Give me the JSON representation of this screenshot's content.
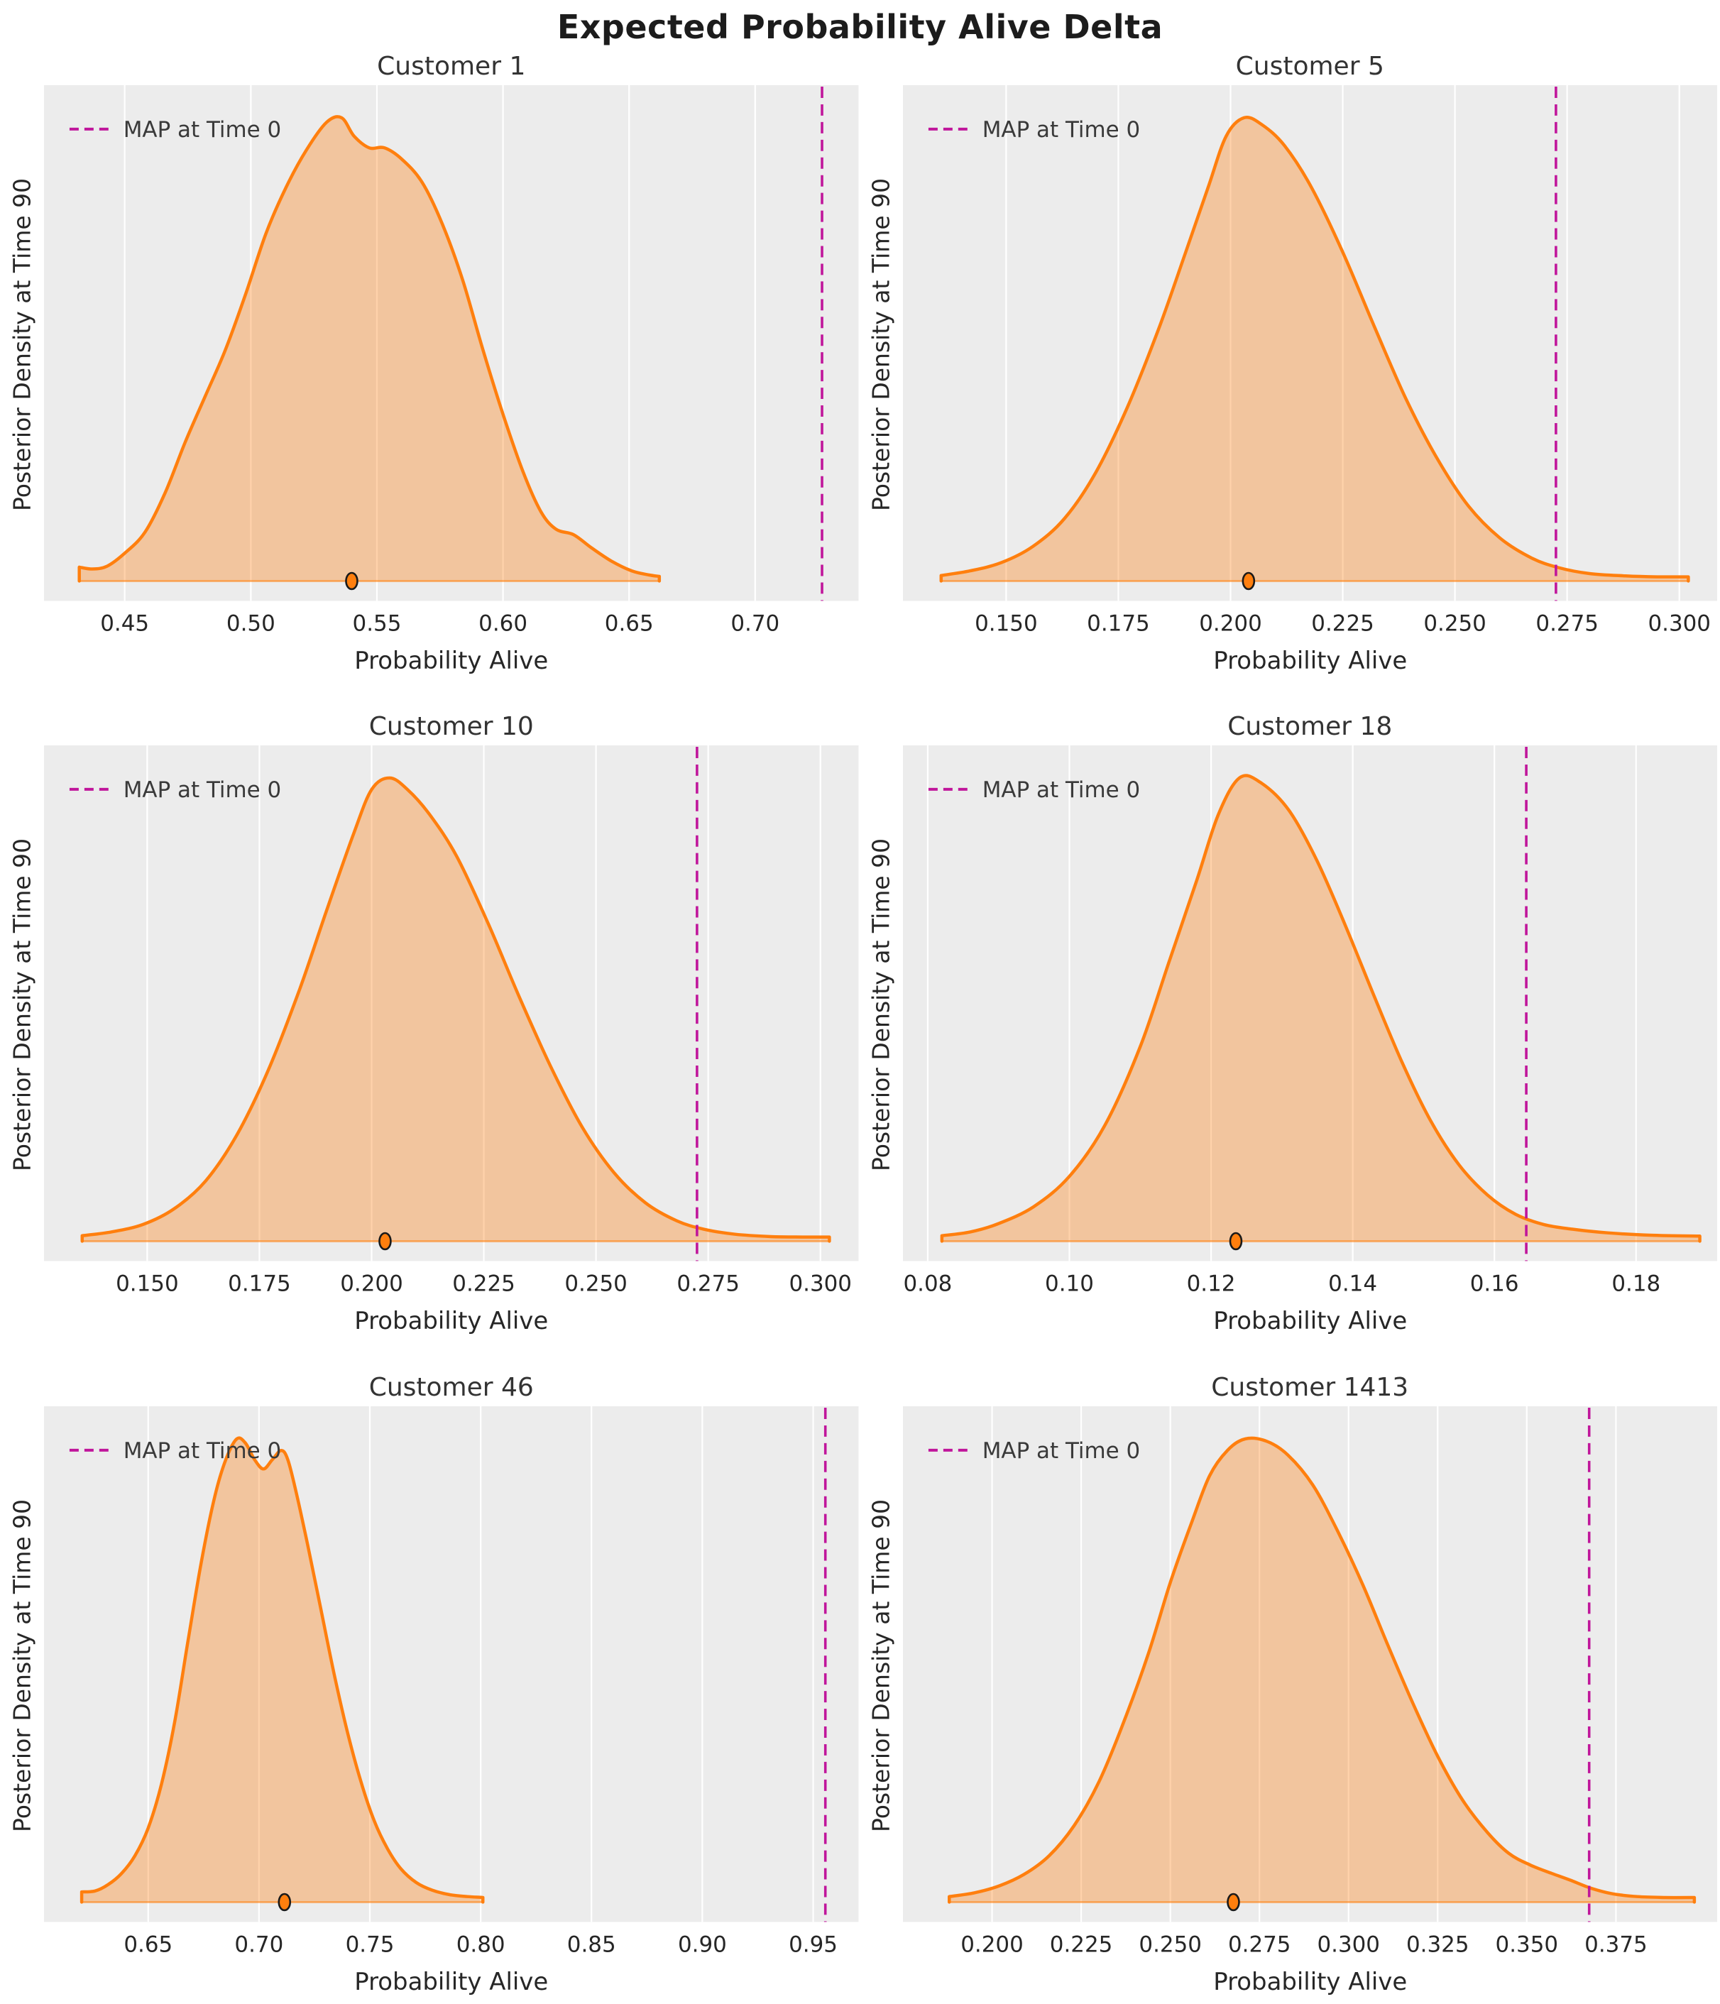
{
  "figure": {
    "suptitle": "Expected Probability Alive Delta"
  },
  "colors": {
    "axes_bg": "#ececec",
    "grid": "#ffffff",
    "density_line": "#ff7f0e",
    "density_fill": "rgba(255,127,14,0.35)",
    "baseline": "rgba(255,127,14,0.55)",
    "map_line": "#c0169b",
    "marker_fill": "#ff7f0e",
    "marker_edge": "#1a1a1a",
    "tick_text": "#262626",
    "label_text": "#262626",
    "legend_text": "#3a3a3a"
  },
  "chart_data": [
    {
      "type": "area",
      "title": "Customer 1",
      "xlabel": "Probability Alive",
      "ylabel": "Posterior Density at Time 90",
      "legend_label": "MAP at Time 0",
      "xlim": [
        0.418,
        0.741
      ],
      "xticks": [
        0.45,
        0.5,
        0.55,
        0.6,
        0.65,
        0.7
      ],
      "tick_decimals": 2,
      "map_at_time0_x": 0.7265,
      "expected_dot_x": 0.54,
      "grid": "vertical-only",
      "legend_position": "upper-left",
      "density_curve": {
        "x": [
          0.432,
          0.437,
          0.443,
          0.45,
          0.458,
          0.466,
          0.474,
          0.482,
          0.49,
          0.498,
          0.506,
          0.514,
          0.522,
          0.53,
          0.536,
          0.541,
          0.547,
          0.553,
          0.56,
          0.568,
          0.576,
          0.584,
          0.592,
          0.6,
          0.608,
          0.615,
          0.621,
          0.628,
          0.635,
          0.643,
          0.651,
          0.658,
          0.662
        ],
        "y_rel": [
          0.03,
          0.026,
          0.032,
          0.06,
          0.105,
          0.19,
          0.3,
          0.4,
          0.5,
          0.62,
          0.75,
          0.85,
          0.93,
          0.99,
          1.0,
          0.96,
          0.935,
          0.935,
          0.91,
          0.86,
          0.77,
          0.65,
          0.5,
          0.36,
          0.235,
          0.15,
          0.112,
          0.1,
          0.072,
          0.043,
          0.022,
          0.013,
          0.01
        ]
      }
    },
    {
      "type": "area",
      "title": "Customer 5",
      "xlabel": "Probability Alive",
      "ylabel": "Posterior Density at Time 90",
      "legend_label": "MAP at Time 0",
      "xlim": [
        0.127,
        0.3085
      ],
      "xticks": [
        0.15,
        0.175,
        0.2,
        0.225,
        0.25,
        0.275,
        0.3
      ],
      "tick_decimals": 3,
      "map_at_time0_x": 0.2725,
      "expected_dot_x": 0.204,
      "grid": "vertical-only",
      "legend_position": "upper-left",
      "density_curve": {
        "x": [
          0.1355,
          0.142,
          0.149,
          0.156,
          0.163,
          0.17,
          0.177,
          0.184,
          0.19,
          0.195,
          0.199,
          0.203,
          0.207,
          0.212,
          0.218,
          0.225,
          0.232,
          0.239,
          0.246,
          0.253,
          0.26,
          0.267,
          0.273,
          0.28,
          0.288,
          0.295,
          0.302
        ],
        "y_rel": [
          0.012,
          0.022,
          0.04,
          0.075,
          0.135,
          0.235,
          0.375,
          0.545,
          0.71,
          0.85,
          0.96,
          1.0,
          0.985,
          0.94,
          0.85,
          0.71,
          0.55,
          0.395,
          0.265,
          0.162,
          0.093,
          0.05,
          0.029,
          0.016,
          0.011,
          0.009,
          0.009
        ]
      }
    },
    {
      "type": "area",
      "title": "Customer 10",
      "xlabel": "Probability Alive",
      "ylabel": "Posterior Density at Time 90",
      "legend_label": "MAP at Time 0",
      "xlim": [
        0.127,
        0.3085
      ],
      "xticks": [
        0.15,
        0.175,
        0.2,
        0.225,
        0.25,
        0.275,
        0.3
      ],
      "tick_decimals": 3,
      "map_at_time0_x": 0.2725,
      "expected_dot_x": 0.203,
      "grid": "vertical-only",
      "legend_position": "upper-left",
      "density_curve": {
        "x": [
          0.1355,
          0.142,
          0.149,
          0.156,
          0.163,
          0.17,
          0.177,
          0.184,
          0.19,
          0.196,
          0.2,
          0.204,
          0.208,
          0.213,
          0.219,
          0.226,
          0.233,
          0.24,
          0.247,
          0.254,
          0.261,
          0.268,
          0.274,
          0.281,
          0.289,
          0.296,
          0.302
        ],
        "y_rel": [
          0.012,
          0.02,
          0.036,
          0.07,
          0.13,
          0.23,
          0.37,
          0.545,
          0.715,
          0.88,
          0.975,
          1.0,
          0.975,
          0.92,
          0.83,
          0.685,
          0.525,
          0.375,
          0.245,
          0.148,
          0.083,
          0.044,
          0.026,
          0.015,
          0.01,
          0.009,
          0.009
        ]
      }
    },
    {
      "type": "area",
      "title": "Customer 18",
      "xlabel": "Probability Alive",
      "ylabel": "Posterior Density at Time 90",
      "legend_label": "MAP at Time 0",
      "xlim": [
        0.0765,
        0.1915
      ],
      "xticks": [
        0.08,
        0.1,
        0.12,
        0.14,
        0.16,
        0.18
      ],
      "tick_decimals": 2,
      "map_at_time0_x": 0.1645,
      "expected_dot_x": 0.1235,
      "grid": "vertical-only",
      "legend_position": "upper-left",
      "density_curve": {
        "x": [
          0.082,
          0.086,
          0.09,
          0.095,
          0.1,
          0.105,
          0.11,
          0.114,
          0.118,
          0.121,
          0.124,
          0.127,
          0.131,
          0.135,
          0.139,
          0.143,
          0.147,
          0.151,
          0.155,
          0.159,
          0.163,
          0.167,
          0.171,
          0.176,
          0.182,
          0.189
        ],
        "y_rel": [
          0.012,
          0.02,
          0.038,
          0.075,
          0.14,
          0.25,
          0.42,
          0.6,
          0.78,
          0.92,
          1.0,
          0.99,
          0.93,
          0.82,
          0.68,
          0.53,
          0.385,
          0.26,
          0.165,
          0.1,
          0.058,
          0.036,
          0.026,
          0.018,
          0.013,
          0.011
        ]
      }
    },
    {
      "type": "area",
      "title": "Customer 46",
      "xlabel": "Probability Alive",
      "ylabel": "Posterior Density at Time 90",
      "legend_label": "MAP at Time 0",
      "xlim": [
        0.603,
        0.9705
      ],
      "xticks": [
        0.65,
        0.7,
        0.75,
        0.8,
        0.85,
        0.9,
        0.95
      ],
      "tick_decimals": 2,
      "map_at_time0_x": 0.9555,
      "expected_dot_x": 0.7115,
      "grid": "vertical-only",
      "legend_position": "upper-left",
      "density_curve": {
        "x": [
          0.62,
          0.626,
          0.632,
          0.638,
          0.644,
          0.65,
          0.656,
          0.662,
          0.668,
          0.674,
          0.68,
          0.685,
          0.69,
          0.694,
          0.698,
          0.702,
          0.706,
          0.71,
          0.713,
          0.717,
          0.722,
          0.728,
          0.734,
          0.74,
          0.746,
          0.752,
          0.758,
          0.764,
          0.771,
          0.778,
          0.786,
          0.794,
          0.801
        ],
        "y_rel": [
          0.022,
          0.024,
          0.038,
          0.062,
          0.1,
          0.16,
          0.255,
          0.39,
          0.565,
          0.735,
          0.875,
          0.955,
          1.0,
          0.99,
          0.955,
          0.935,
          0.955,
          0.975,
          0.955,
          0.88,
          0.77,
          0.63,
          0.49,
          0.365,
          0.26,
          0.175,
          0.115,
          0.072,
          0.042,
          0.026,
          0.016,
          0.012,
          0.01
        ]
      }
    },
    {
      "type": "area",
      "title": "Customer 1413",
      "xlabel": "Probability Alive",
      "ylabel": "Posterior Density at Time 90",
      "legend_label": "MAP at Time 0",
      "xlim": [
        0.175,
        0.4035
      ],
      "xticks": [
        0.2,
        0.225,
        0.25,
        0.275,
        0.3,
        0.325,
        0.35,
        0.375
      ],
      "tick_decimals": 3,
      "map_at_time0_x": 0.3675,
      "expected_dot_x": 0.2677,
      "grid": "vertical-only",
      "legend_position": "upper-left",
      "density_curve": {
        "x": [
          0.188,
          0.195,
          0.202,
          0.209,
          0.216,
          0.223,
          0.23,
          0.237,
          0.244,
          0.25,
          0.256,
          0.261,
          0.266,
          0.271,
          0.277,
          0.283,
          0.29,
          0.297,
          0.304,
          0.311,
          0.318,
          0.325,
          0.332,
          0.339,
          0.345,
          0.351,
          0.357,
          0.362,
          0.368,
          0.374,
          0.381,
          0.389,
          0.397
        ],
        "y_rel": [
          0.012,
          0.02,
          0.035,
          0.06,
          0.1,
          0.165,
          0.26,
          0.39,
          0.54,
          0.69,
          0.82,
          0.92,
          0.975,
          1.0,
          0.995,
          0.965,
          0.9,
          0.8,
          0.685,
          0.555,
          0.43,
          0.315,
          0.22,
          0.15,
          0.105,
          0.08,
          0.062,
          0.048,
          0.03,
          0.018,
          0.012,
          0.01,
          0.01
        ]
      }
    }
  ]
}
